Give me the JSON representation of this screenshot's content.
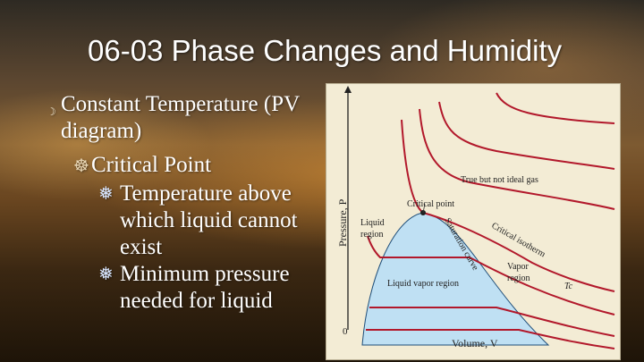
{
  "slide": {
    "title": "06-03 Phase Changes and Humidity",
    "bullets": {
      "level1": {
        "marker": "☽",
        "text": "Constant Temperature (PV diagram)"
      },
      "level2": {
        "marker": "☸",
        "text": "Critical Point"
      },
      "level3": [
        {
          "marker": "❅",
          "text": "Temperature above which liquid cannot exist"
        },
        {
          "marker": "❅",
          "text": "Minimum pressure needed for liquid"
        }
      ]
    }
  },
  "figure": {
    "y_axis_label": "Pressure, P",
    "x_axis_label": "Volume, V",
    "origin_label": "0",
    "labels": {
      "ideal_gas": "True but not ideal gas",
      "critical_point": "Critical point",
      "liquid_region": [
        "Liquid",
        "region"
      ],
      "saturation_curve": "Saturation curve",
      "critical_isotherm": "Critical isotherm",
      "vapor_region": [
        "Vapor",
        "region"
      ],
      "liquid_vapor_region": "Liquid vapor region",
      "tc": "Tc"
    },
    "colors": {
      "isotherm": "#b2182b",
      "dome_fill": "#bfe0f3",
      "axis": "#222222"
    }
  }
}
